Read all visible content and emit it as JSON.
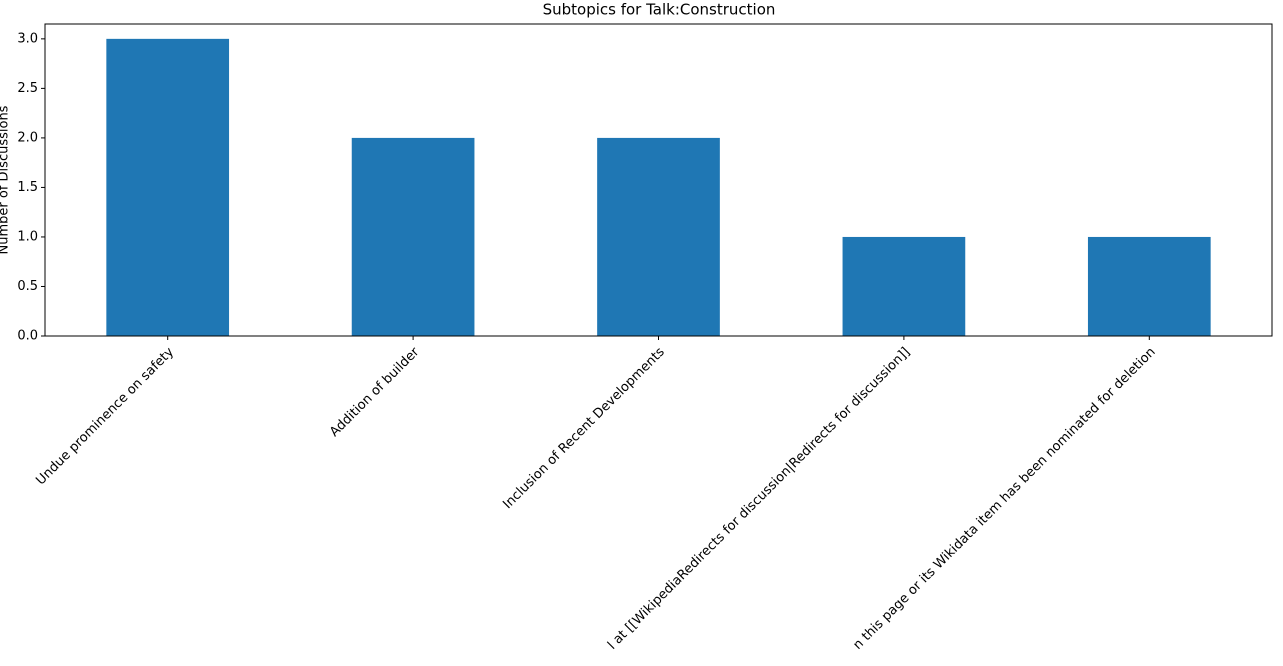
{
  "chart_data": {
    "type": "bar",
    "title": "Subtopics for Talk:Construction",
    "y_label": "Number of Discussions",
    "categories": [
      "Undue prominence on safety",
      "Addition of builder",
      "Inclusion of Recent Developments",
      "l at [[WikipediaRedirects for discussion|Redirects for discussion]]",
      "n this page or its Wikidata item has been nominated for deletion"
    ],
    "values": [
      3,
      2,
      2,
      1,
      1
    ],
    "color": "#1f77b4",
    "ylim": [
      0,
      3.15
    ],
    "yticks": [
      {
        "value": 0,
        "label": "0.0"
      },
      {
        "value": 0.5,
        "label": "0.5"
      },
      {
        "value": 1,
        "label": "1.0"
      },
      {
        "value": 1.5,
        "label": "1.5"
      },
      {
        "value": 2,
        "label": "2.0"
      },
      {
        "value": 2.5,
        "label": "2.5"
      },
      {
        "value": 3,
        "label": "3.0"
      }
    ],
    "grid": false
  }
}
